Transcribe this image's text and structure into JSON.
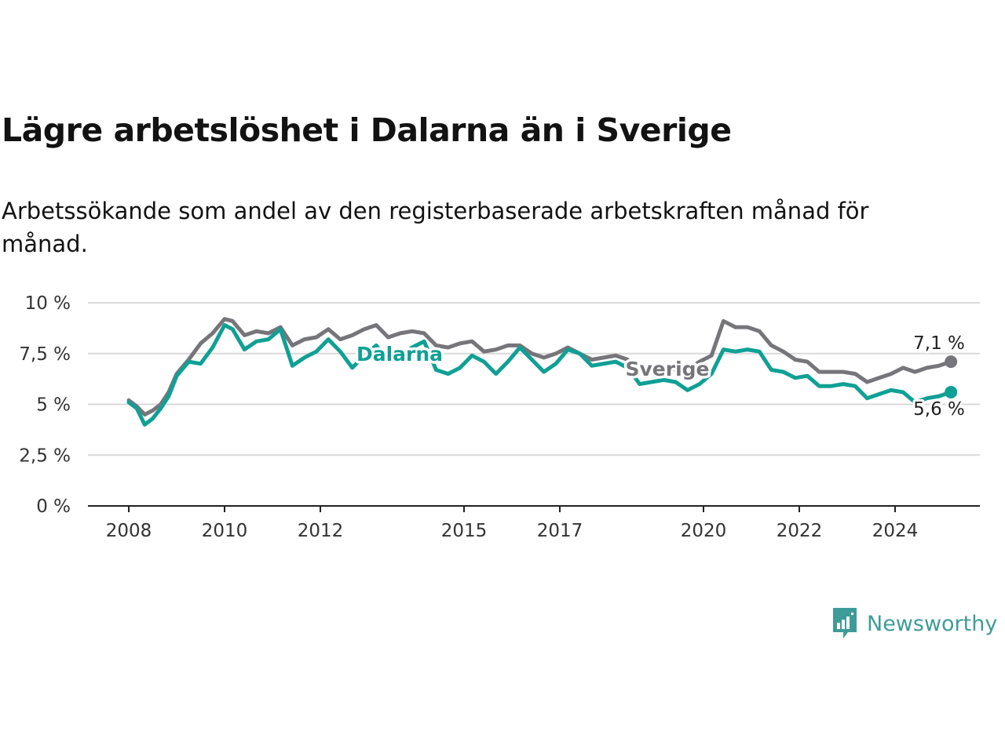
{
  "header": {
    "title": "Lägre arbetslöshet i Dalarna än i Sverige",
    "subtitle": "Arbetssökande som andel av den registerbaserade arbetskraften månad för månad."
  },
  "brand": {
    "name": "Newsworthy",
    "icon": "newsworthy-logo-icon",
    "color": "#3e9c98"
  },
  "chart_data": {
    "type": "line",
    "title": "Lägre arbetslöshet i Dalarna än i Sverige",
    "subtitle": "Arbetssökande som andel av den registerbaserade arbetskraften månad för månad.",
    "xlabel": "",
    "ylabel": "",
    "x_ticks": [
      "2008",
      "2010",
      "2012",
      "2015",
      "2017",
      "2020",
      "2022",
      "2024"
    ],
    "y_ticks": [
      "0 %",
      "2,5 %",
      "5 %",
      "7,5 %",
      "10 %"
    ],
    "ylim": [
      0,
      10
    ],
    "xlim": [
      "2007-01",
      "2025-09"
    ],
    "grid": true,
    "series": [
      {
        "name": "Sverige",
        "color": "#76757a",
        "end_label": "7,1 %",
        "points": [
          [
            "2008-01",
            5.2
          ],
          [
            "2008-03",
            4.9
          ],
          [
            "2008-05",
            4.5
          ],
          [
            "2008-07",
            4.7
          ],
          [
            "2008-09",
            5.0
          ],
          [
            "2008-11",
            5.6
          ],
          [
            "2009-01",
            6.5
          ],
          [
            "2009-04",
            7.2
          ],
          [
            "2009-07",
            8.0
          ],
          [
            "2009-10",
            8.5
          ],
          [
            "2010-01",
            9.2
          ],
          [
            "2010-03",
            9.1
          ],
          [
            "2010-06",
            8.4
          ],
          [
            "2010-09",
            8.6
          ],
          [
            "2010-12",
            8.5
          ],
          [
            "2011-03",
            8.8
          ],
          [
            "2011-06",
            7.9
          ],
          [
            "2011-09",
            8.2
          ],
          [
            "2011-12",
            8.3
          ],
          [
            "2012-03",
            8.7
          ],
          [
            "2012-06",
            8.2
          ],
          [
            "2012-09",
            8.4
          ],
          [
            "2012-12",
            8.7
          ],
          [
            "2013-03",
            8.9
          ],
          [
            "2013-06",
            8.3
          ],
          [
            "2013-09",
            8.5
          ],
          [
            "2013-12",
            8.6
          ],
          [
            "2014-03",
            8.5
          ],
          [
            "2014-06",
            7.9
          ],
          [
            "2014-09",
            7.8
          ],
          [
            "2014-12",
            8.0
          ],
          [
            "2015-03",
            8.1
          ],
          [
            "2015-06",
            7.6
          ],
          [
            "2015-09",
            7.7
          ],
          [
            "2015-12",
            7.9
          ],
          [
            "2016-03",
            7.9
          ],
          [
            "2016-06",
            7.5
          ],
          [
            "2016-09",
            7.3
          ],
          [
            "2016-12",
            7.5
          ],
          [
            "2017-03",
            7.8
          ],
          [
            "2017-06",
            7.5
          ],
          [
            "2017-09",
            7.2
          ],
          [
            "2017-12",
            7.3
          ],
          [
            "2018-03",
            7.4
          ],
          [
            "2018-06",
            7.2
          ],
          [
            "2018-09",
            6.7
          ],
          [
            "2018-12",
            6.8
          ],
          [
            "2019-03",
            6.9
          ],
          [
            "2019-06",
            6.7
          ],
          [
            "2019-09",
            6.7
          ],
          [
            "2019-12",
            7.1
          ],
          [
            "2020-03",
            7.4
          ],
          [
            "2020-06",
            9.1
          ],
          [
            "2020-09",
            8.8
          ],
          [
            "2020-12",
            8.8
          ],
          [
            "2021-03",
            8.6
          ],
          [
            "2021-06",
            7.9
          ],
          [
            "2021-09",
            7.6
          ],
          [
            "2021-12",
            7.2
          ],
          [
            "2022-03",
            7.1
          ],
          [
            "2022-06",
            6.6
          ],
          [
            "2022-09",
            6.6
          ],
          [
            "2022-12",
            6.6
          ],
          [
            "2023-03",
            6.5
          ],
          [
            "2023-06",
            6.1
          ],
          [
            "2023-09",
            6.3
          ],
          [
            "2023-12",
            6.5
          ],
          [
            "2024-03",
            6.8
          ],
          [
            "2024-06",
            6.6
          ],
          [
            "2024-09",
            6.8
          ],
          [
            "2024-12",
            6.9
          ],
          [
            "2025-03",
            7.1
          ]
        ]
      },
      {
        "name": "Dalarna",
        "color": "#10a095",
        "end_label": "5,6 %",
        "points": [
          [
            "2008-01",
            5.1
          ],
          [
            "2008-03",
            4.8
          ],
          [
            "2008-05",
            4.0
          ],
          [
            "2008-07",
            4.3
          ],
          [
            "2008-09",
            4.8
          ],
          [
            "2008-11",
            5.4
          ],
          [
            "2009-01",
            6.4
          ],
          [
            "2009-04",
            7.1
          ],
          [
            "2009-07",
            7.0
          ],
          [
            "2009-10",
            7.8
          ],
          [
            "2010-01",
            8.9
          ],
          [
            "2010-03",
            8.7
          ],
          [
            "2010-06",
            7.7
          ],
          [
            "2010-09",
            8.1
          ],
          [
            "2010-12",
            8.2
          ],
          [
            "2011-03",
            8.7
          ],
          [
            "2011-06",
            6.9
          ],
          [
            "2011-09",
            7.3
          ],
          [
            "2011-12",
            7.6
          ],
          [
            "2012-03",
            8.2
          ],
          [
            "2012-06",
            7.6
          ],
          [
            "2012-09",
            6.8
          ],
          [
            "2012-12",
            7.4
          ],
          [
            "2013-03",
            7.9
          ],
          [
            "2013-06",
            7.1
          ],
          [
            "2013-09",
            7.4
          ],
          [
            "2013-12",
            7.8
          ],
          [
            "2014-03",
            8.1
          ],
          [
            "2014-06",
            6.7
          ],
          [
            "2014-09",
            6.5
          ],
          [
            "2014-12",
            6.8
          ],
          [
            "2015-03",
            7.4
          ],
          [
            "2015-06",
            7.1
          ],
          [
            "2015-09",
            6.5
          ],
          [
            "2015-12",
            7.1
          ],
          [
            "2016-03",
            7.8
          ],
          [
            "2016-06",
            7.2
          ],
          [
            "2016-09",
            6.6
          ],
          [
            "2016-12",
            7.0
          ],
          [
            "2017-03",
            7.7
          ],
          [
            "2017-06",
            7.5
          ],
          [
            "2017-09",
            6.9
          ],
          [
            "2017-12",
            7.0
          ],
          [
            "2018-03",
            7.1
          ],
          [
            "2018-06",
            6.8
          ],
          [
            "2018-09",
            6.0
          ],
          [
            "2018-12",
            6.1
          ],
          [
            "2019-03",
            6.2
          ],
          [
            "2019-06",
            6.1
          ],
          [
            "2019-09",
            5.7
          ],
          [
            "2019-12",
            6.0
          ],
          [
            "2020-03",
            6.5
          ],
          [
            "2020-06",
            7.7
          ],
          [
            "2020-09",
            7.6
          ],
          [
            "2020-12",
            7.7
          ],
          [
            "2021-03",
            7.6
          ],
          [
            "2021-06",
            6.7
          ],
          [
            "2021-09",
            6.6
          ],
          [
            "2021-12",
            6.3
          ],
          [
            "2022-03",
            6.4
          ],
          [
            "2022-06",
            5.9
          ],
          [
            "2022-09",
            5.9
          ],
          [
            "2022-12",
            6.0
          ],
          [
            "2023-03",
            5.9
          ],
          [
            "2023-06",
            5.3
          ],
          [
            "2023-09",
            5.5
          ],
          [
            "2023-12",
            5.7
          ],
          [
            "2024-03",
            5.6
          ],
          [
            "2024-06",
            5.1
          ],
          [
            "2024-09",
            5.3
          ],
          [
            "2024-12",
            5.4
          ],
          [
            "2025-03",
            5.6
          ]
        ]
      }
    ]
  }
}
